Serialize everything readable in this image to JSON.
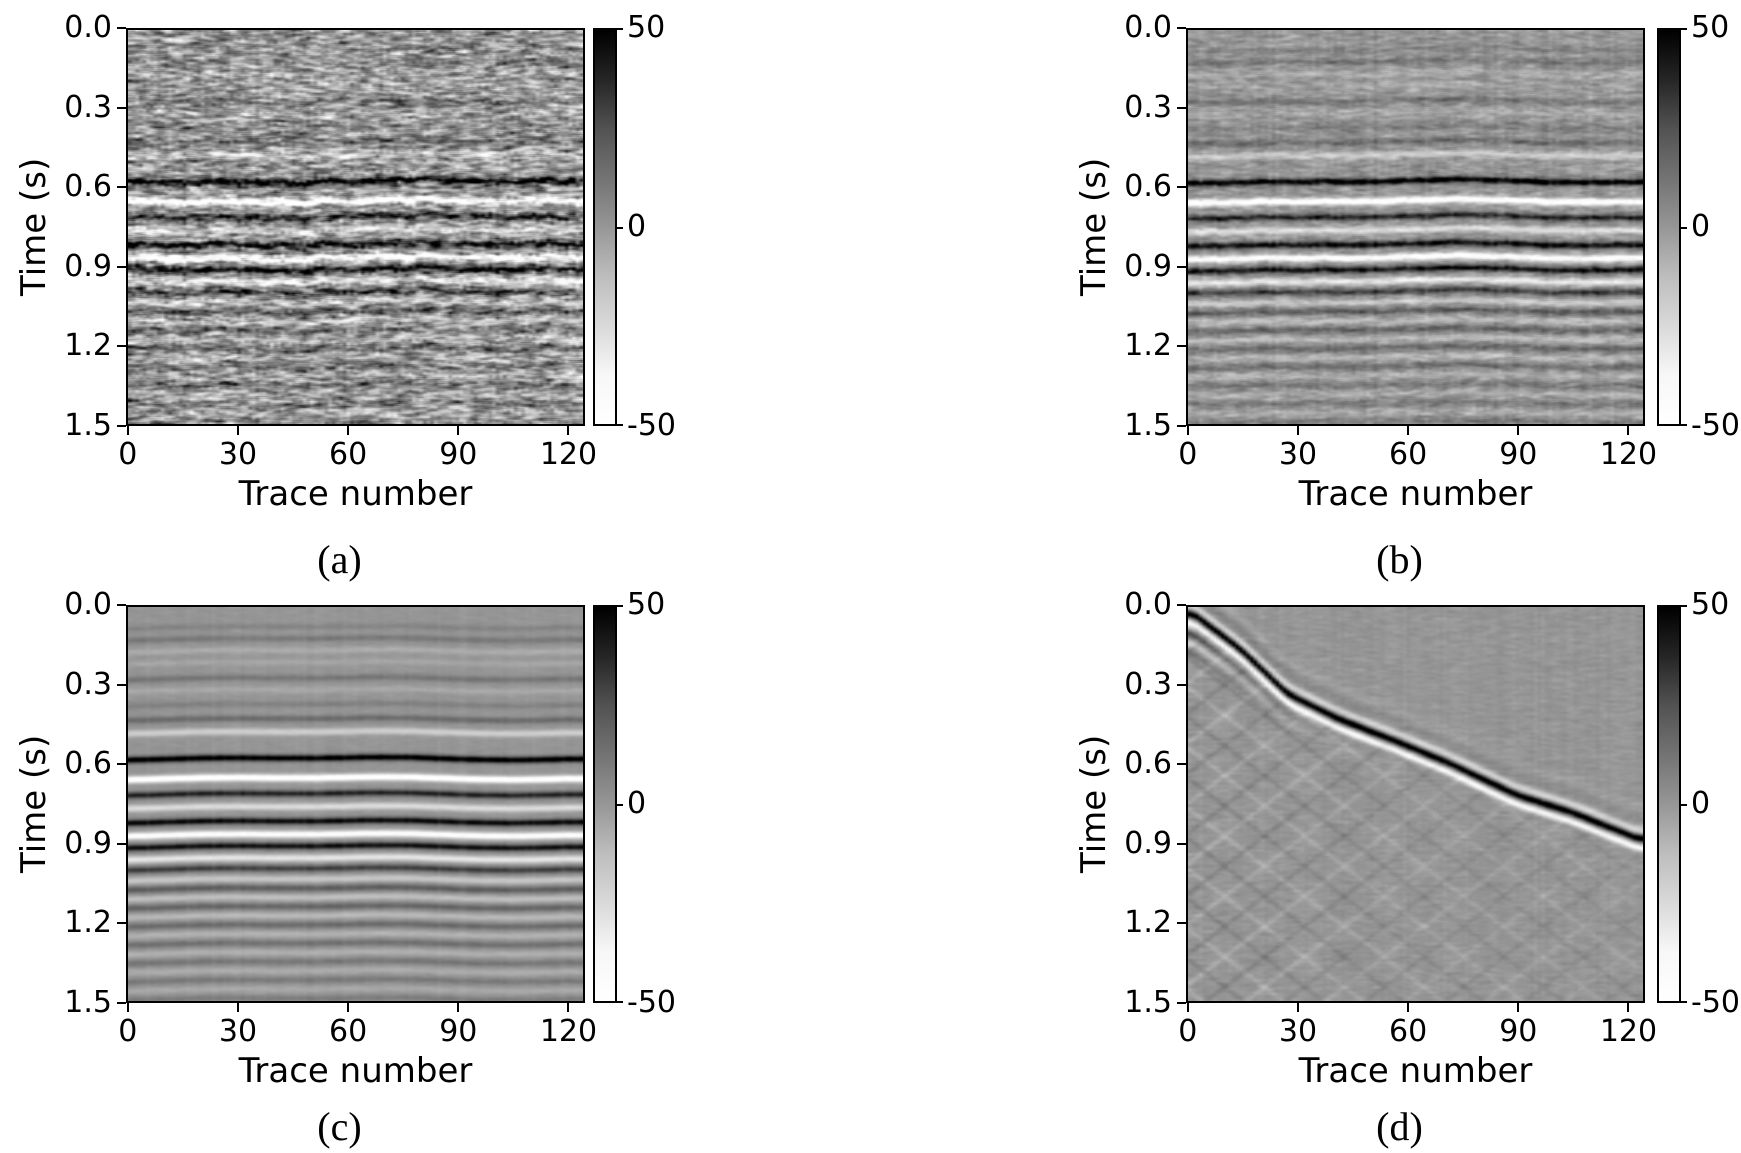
{
  "figure": {
    "background": "#ffffff",
    "axis_color": "#000000",
    "text_color": "#000000"
  },
  "chart_data": {
    "type": "heatmap",
    "layout": "2x2 subplot grid of seismic image panels",
    "xlabel": "Trace number",
    "ylabel": "Time (s)",
    "x_tick_labels": [
      "0",
      "30",
      "60",
      "90",
      "120"
    ],
    "x_tick_values": [
      0,
      30,
      60,
      90,
      120
    ],
    "x_range": [
      -0.5,
      124.5
    ],
    "y_tick_labels": [
      "0.0",
      "0.3",
      "0.6",
      "0.9",
      "1.2",
      "1.5"
    ],
    "y_tick_values": [
      0.0,
      0.3,
      0.6,
      0.9,
      1.2,
      1.5
    ],
    "y_range": [
      0.0,
      1.5
    ],
    "colormap": "Greys",
    "cmap_stops": [
      [
        0,
        255
      ],
      [
        0.125,
        247
      ],
      [
        0.25,
        217
      ],
      [
        0.375,
        189
      ],
      [
        0.5,
        150
      ],
      [
        0.625,
        115
      ],
      [
        0.75,
        82
      ],
      [
        0.875,
        37
      ],
      [
        1,
        0
      ]
    ],
    "value_range": [
      -50,
      50
    ],
    "colorbar_tick_labels": [
      "50",
      "0",
      "-50"
    ],
    "colorbar_tick_values": [
      50,
      0,
      -50
    ],
    "panels": [
      {
        "id": "a",
        "caption": "(a)",
        "kind": "layered",
        "description": "noisy stacked seismic section, horizontal reflection events with strong random noise",
        "synthesis": {
          "seed": 11,
          "noise_amp": 11,
          "jitter": 0.0065,
          "wiggle": 0.005,
          "stripe_gain": 0.12,
          "stripe_add": 2.5,
          "phase": 0.3
        }
      },
      {
        "id": "b",
        "caption": "(b)",
        "kind": "layered",
        "description": "same section after partial denoising, smoother horizontal events with mild trace striping",
        "synthesis": {
          "seed": 22,
          "noise_amp": 3.5,
          "jitter": 0.0018,
          "wiggle": 0.005,
          "stripe_gain": 0.1,
          "stripe_add": 2.0,
          "phase": 1.1
        }
      },
      {
        "id": "c",
        "caption": "(c)",
        "kind": "layered",
        "description": "clean noise-free section, smooth horizontal reflection events",
        "synthesis": {
          "seed": 33,
          "noise_amp": 0.6,
          "jitter": 0.0004,
          "wiggle": 0.004,
          "stripe_gain": 0.05,
          "stripe_add": 0.8,
          "phase": 2.0
        }
      },
      {
        "id": "d",
        "caption": "(d)",
        "kind": "dipping",
        "description": "removed coherent noise component: strong dipping event from upper-left to lower-right with criss-cross scattered energy below",
        "synthesis": {
          "seed": 44,
          "noise_amp": 1.2,
          "stripe_gain": 0.04,
          "stripe_add": 1.0
        }
      }
    ],
    "layered_events": [
      [
        0.075,
        6
      ],
      [
        0.12,
        10
      ],
      [
        0.165,
        -7
      ],
      [
        0.21,
        -5
      ],
      [
        0.27,
        11
      ],
      [
        0.315,
        -6
      ],
      [
        0.37,
        7
      ],
      [
        0.425,
        15
      ],
      [
        0.475,
        -20
      ],
      [
        0.575,
        52
      ],
      [
        0.65,
        -50
      ],
      [
        0.71,
        38
      ],
      [
        0.76,
        -26
      ],
      [
        0.815,
        46
      ],
      [
        0.865,
        -46
      ],
      [
        0.91,
        44
      ],
      [
        0.955,
        -30
      ],
      [
        0.995,
        30
      ],
      [
        1.035,
        -16
      ],
      [
        1.07,
        20
      ],
      [
        1.105,
        -13
      ],
      [
        1.14,
        17
      ],
      [
        1.175,
        -11
      ],
      [
        1.21,
        15
      ],
      [
        1.245,
        -9
      ],
      [
        1.28,
        13
      ],
      [
        1.315,
        -8
      ],
      [
        1.35,
        11
      ],
      [
        1.385,
        -7
      ],
      [
        1.42,
        10
      ],
      [
        1.455,
        -6
      ],
      [
        1.49,
        9
      ]
    ],
    "dipping": {
      "curve_points": [
        [
          0,
          0.015
        ],
        [
          14,
          0.16
        ],
        [
          27,
          0.33
        ],
        [
          41,
          0.425
        ],
        [
          55,
          0.5
        ],
        [
          70,
          0.585
        ],
        [
          90,
          0.715
        ],
        [
          105,
          0.78
        ],
        [
          124,
          0.885
        ]
      ],
      "wavelet": [
        [
          -0.032,
          -22
        ],
        [
          0,
          55
        ],
        [
          0.036,
          -38
        ]
      ],
      "echoes": [
        [
          0.075,
          30
        ],
        [
          0.112,
          -18
        ],
        [
          0.15,
          12
        ]
      ],
      "echo_decay_traces": 16,
      "ringing_above": [
        [
          -0.075,
          7
        ],
        [
          -0.12,
          -5
        ]
      ],
      "cross": {
        "slopes": [
          0.0105,
          -0.0105
        ],
        "offsets": [
          -1.3,
          0.05
        ],
        "spacing": 0.115,
        "amp": 6.5,
        "width": 0.012,
        "count": 30
      }
    }
  }
}
